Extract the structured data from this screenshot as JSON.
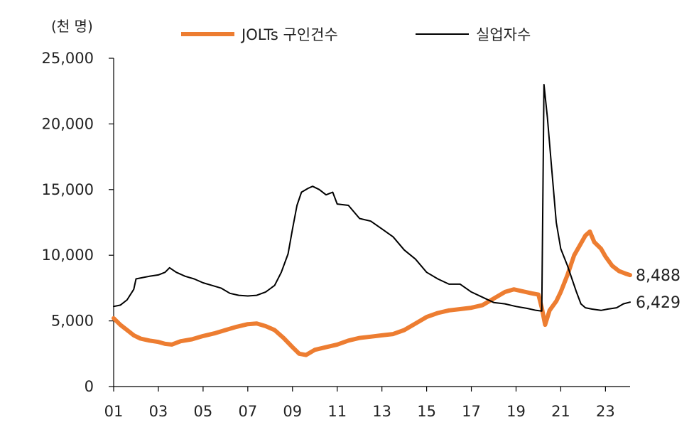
{
  "chart_data": {
    "type": "line",
    "unit": "(천 명)",
    "xlim": [
      2001,
      2024.1
    ],
    "ylim": [
      0,
      25000
    ],
    "y_ticks": [
      0,
      5000,
      10000,
      15000,
      20000,
      25000
    ],
    "y_tick_labels": [
      "0",
      "5,000",
      "10,000",
      "15,000",
      "20,000",
      "25,000"
    ],
    "x_ticks": [
      2001,
      2003,
      2005,
      2007,
      2009,
      2011,
      2013,
      2015,
      2017,
      2019,
      2021,
      2023
    ],
    "x_tick_labels": [
      "01",
      "03",
      "05",
      "07",
      "09",
      "11",
      "13",
      "15",
      "17",
      "19",
      "21",
      "23"
    ],
    "legend_position": "top",
    "series": [
      {
        "name": "JOLTs 구인건수",
        "color": "#ED7D31",
        "end_label": "8,488",
        "points": [
          [
            2001.0,
            5200
          ],
          [
            2001.3,
            4700
          ],
          [
            2001.6,
            4300
          ],
          [
            2001.9,
            3900
          ],
          [
            2002.2,
            3650
          ],
          [
            2002.6,
            3500
          ],
          [
            2003.0,
            3400
          ],
          [
            2003.3,
            3250
          ],
          [
            2003.6,
            3200
          ],
          [
            2004.0,
            3450
          ],
          [
            2004.5,
            3600
          ],
          [
            2005.0,
            3850
          ],
          [
            2005.5,
            4050
          ],
          [
            2006.0,
            4300
          ],
          [
            2006.5,
            4550
          ],
          [
            2007.0,
            4750
          ],
          [
            2007.4,
            4800
          ],
          [
            2007.8,
            4600
          ],
          [
            2008.2,
            4300
          ],
          [
            2008.6,
            3700
          ],
          [
            2009.0,
            3000
          ],
          [
            2009.3,
            2500
          ],
          [
            2009.6,
            2400
          ],
          [
            2010.0,
            2800
          ],
          [
            2010.5,
            3000
          ],
          [
            2011.0,
            3200
          ],
          [
            2011.5,
            3500
          ],
          [
            2012.0,
            3700
          ],
          [
            2012.5,
            3800
          ],
          [
            2013.0,
            3900
          ],
          [
            2013.5,
            4000
          ],
          [
            2014.0,
            4300
          ],
          [
            2014.5,
            4800
          ],
          [
            2015.0,
            5300
          ],
          [
            2015.5,
            5600
          ],
          [
            2016.0,
            5800
          ],
          [
            2016.5,
            5900
          ],
          [
            2017.0,
            6000
          ],
          [
            2017.5,
            6200
          ],
          [
            2018.0,
            6700
          ],
          [
            2018.5,
            7200
          ],
          [
            2018.9,
            7400
          ],
          [
            2019.3,
            7250
          ],
          [
            2019.7,
            7100
          ],
          [
            2020.0,
            7000
          ],
          [
            2020.15,
            6000
          ],
          [
            2020.3,
            4700
          ],
          [
            2020.5,
            5800
          ],
          [
            2020.8,
            6500
          ],
          [
            2021.0,
            7200
          ],
          [
            2021.3,
            8500
          ],
          [
            2021.6,
            10000
          ],
          [
            2021.9,
            10900
          ],
          [
            2022.1,
            11500
          ],
          [
            2022.3,
            11800
          ],
          [
            2022.5,
            11000
          ],
          [
            2022.8,
            10500
          ],
          [
            2023.0,
            9900
          ],
          [
            2023.3,
            9200
          ],
          [
            2023.6,
            8800
          ],
          [
            2023.9,
            8600
          ],
          [
            2024.1,
            8488
          ]
        ]
      },
      {
        "name": "실업자수",
        "color": "#000000",
        "end_label": "6,429",
        "points": [
          [
            2001.0,
            6100
          ],
          [
            2001.3,
            6200
          ],
          [
            2001.6,
            6600
          ],
          [
            2001.9,
            7400
          ],
          [
            2002.0,
            8200
          ],
          [
            2002.3,
            8300
          ],
          [
            2002.6,
            8400
          ],
          [
            2003.0,
            8500
          ],
          [
            2003.3,
            8700
          ],
          [
            2003.5,
            9050
          ],
          [
            2003.8,
            8700
          ],
          [
            2004.2,
            8400
          ],
          [
            2004.6,
            8200
          ],
          [
            2005.0,
            7900
          ],
          [
            2005.4,
            7700
          ],
          [
            2005.8,
            7500
          ],
          [
            2006.2,
            7100
          ],
          [
            2006.6,
            6950
          ],
          [
            2007.0,
            6900
          ],
          [
            2007.4,
            6950
          ],
          [
            2007.8,
            7200
          ],
          [
            2008.2,
            7700
          ],
          [
            2008.5,
            8700
          ],
          [
            2008.8,
            10100
          ],
          [
            2009.0,
            12000
          ],
          [
            2009.2,
            13800
          ],
          [
            2009.4,
            14800
          ],
          [
            2009.7,
            15100
          ],
          [
            2009.9,
            15250
          ],
          [
            2010.2,
            15000
          ],
          [
            2010.5,
            14600
          ],
          [
            2010.8,
            14800
          ],
          [
            2011.0,
            13900
          ],
          [
            2011.5,
            13800
          ],
          [
            2012.0,
            12800
          ],
          [
            2012.5,
            12600
          ],
          [
            2013.0,
            12000
          ],
          [
            2013.5,
            11400
          ],
          [
            2014.0,
            10400
          ],
          [
            2014.5,
            9700
          ],
          [
            2015.0,
            8700
          ],
          [
            2015.5,
            8200
          ],
          [
            2016.0,
            7800
          ],
          [
            2016.5,
            7800
          ],
          [
            2017.0,
            7200
          ],
          [
            2017.5,
            6800
          ],
          [
            2018.0,
            6400
          ],
          [
            2018.5,
            6300
          ],
          [
            2019.0,
            6100
          ],
          [
            2019.5,
            5950
          ],
          [
            2019.9,
            5800
          ],
          [
            2020.15,
            5750
          ],
          [
            2020.25,
            23000
          ],
          [
            2020.4,
            20500
          ],
          [
            2020.6,
            16500
          ],
          [
            2020.8,
            12500
          ],
          [
            2021.0,
            10500
          ],
          [
            2021.3,
            9200
          ],
          [
            2021.5,
            8200
          ],
          [
            2021.7,
            7200
          ],
          [
            2021.9,
            6300
          ],
          [
            2022.1,
            6000
          ],
          [
            2022.4,
            5900
          ],
          [
            2022.8,
            5800
          ],
          [
            2023.1,
            5900
          ],
          [
            2023.5,
            6000
          ],
          [
            2023.8,
            6300
          ],
          [
            2024.1,
            6429
          ]
        ]
      }
    ]
  }
}
